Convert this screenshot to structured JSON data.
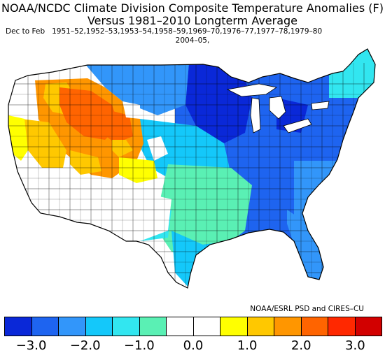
{
  "title": {
    "line1": "NOAA/NCDC Climate Division Composite Temperature Anomalies (F)",
    "line2": "Versus 1981–2010 Longterm Average"
  },
  "subtitle": {
    "period": "Dec to Feb",
    "years_line1": "1951–52,1952–53,1953–54,1958–59,1969–70,1976–77,1977–78,1979–80",
    "years_line2": "2004–05,"
  },
  "credit": "NOAA/ESRL PSD and CIRES–CU",
  "legend": {
    "colors": [
      "#0a28d8",
      "#1e64f0",
      "#3296fa",
      "#14c8fa",
      "#32e6f0",
      "#5af0b4",
      "#ffffff",
      "#ffffff",
      "#ffff00",
      "#ffc800",
      "#ff9600",
      "#ff6400",
      "#ff2800",
      "#d20000"
    ],
    "tick_labels": [
      "−3.0",
      "−2.0",
      "−1.0",
      "0.0",
      "1.0",
      "2.0",
      "3.0"
    ],
    "tick_values": [
      -3,
      -2,
      -1,
      0,
      1,
      2,
      3
    ],
    "min": -3.5,
    "max": 3.5
  }
}
